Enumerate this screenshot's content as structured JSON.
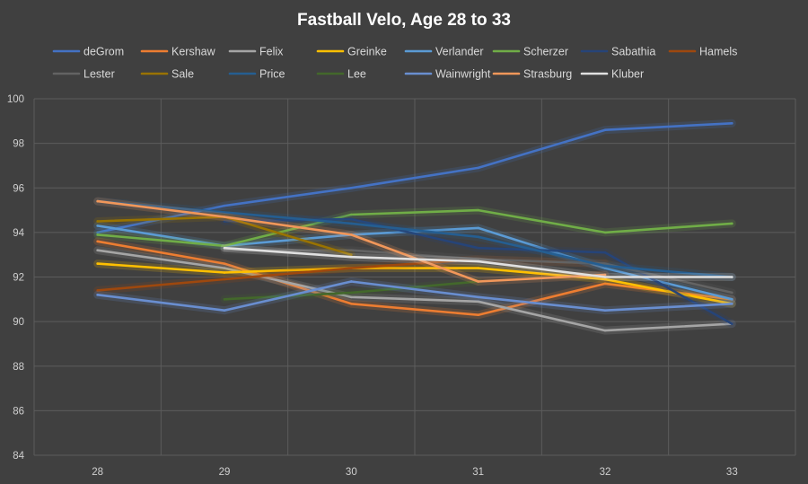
{
  "chart_data": {
    "type": "line",
    "title": "Fastball Velo, Age 28 to 33",
    "xlabel": "",
    "ylabel": "",
    "categories": [
      "28",
      "29",
      "30",
      "31",
      "32",
      "33"
    ],
    "ylim": [
      84,
      100
    ],
    "yticks": [
      "84",
      "86",
      "88",
      "90",
      "92",
      "94",
      "96",
      "98",
      "100"
    ],
    "grid": true,
    "legend_position": "top",
    "series": [
      {
        "name": "deGrom",
        "color": "#4472c4",
        "values": [
          94.0,
          95.2,
          96.0,
          96.9,
          98.6,
          98.9
        ]
      },
      {
        "name": "Kershaw",
        "color": "#ed7d31",
        "values": [
          93.6,
          92.6,
          90.8,
          90.3,
          91.7,
          91.0
        ]
      },
      {
        "name": "Felix",
        "color": "#a5a5a5",
        "values": [
          93.2,
          92.4,
          91.1,
          90.9,
          89.6,
          89.9
        ]
      },
      {
        "name": "Greinke",
        "color": "#ffc000",
        "values": [
          92.6,
          92.2,
          92.4,
          92.4,
          91.9,
          90.8
        ]
      },
      {
        "name": "Verlander",
        "color": "#5b9bd5",
        "values": [
          94.3,
          93.4,
          93.9,
          94.2,
          92.4,
          91.0
        ]
      },
      {
        "name": "Scherzer",
        "color": "#70ad47",
        "values": [
          93.9,
          93.4,
          94.8,
          95.0,
          94.0,
          94.4
        ]
      },
      {
        "name": "Sabathia",
        "color": "#264478",
        "values": [
          null,
          94.5,
          94.6,
          93.3,
          93.1,
          89.9
        ]
      },
      {
        "name": "Hamels",
        "color": "#9e480e",
        "values": [
          91.4,
          91.9,
          92.4,
          92.8,
          92.6,
          null
        ]
      },
      {
        "name": "Lester",
        "color": "#636363",
        "values": [
          null,
          93.2,
          93.2,
          92.8,
          92.6,
          91.3
        ]
      },
      {
        "name": "Sale",
        "color": "#997300",
        "values": [
          94.5,
          94.7,
          93.0,
          null,
          null,
          null
        ]
      },
      {
        "name": "Price",
        "color": "#255e91",
        "values": [
          95.4,
          94.9,
          94.4,
          93.8,
          92.5,
          92.0
        ]
      },
      {
        "name": "Lee",
        "color": "#43682b",
        "values": [
          null,
          91.0,
          91.3,
          91.8,
          null,
          null
        ]
      },
      {
        "name": "Wainwright",
        "color": "#698ed0",
        "values": [
          91.2,
          90.5,
          91.8,
          91.1,
          90.5,
          90.8
        ]
      },
      {
        "name": "Strasburg",
        "color": "#f1975a",
        "values": [
          95.4,
          94.7,
          93.9,
          91.8,
          92.1,
          null
        ]
      },
      {
        "name": "Kluber",
        "color": "#e0e0e0",
        "values": [
          null,
          93.3,
          92.9,
          92.7,
          92.0,
          92.0
        ]
      }
    ]
  }
}
